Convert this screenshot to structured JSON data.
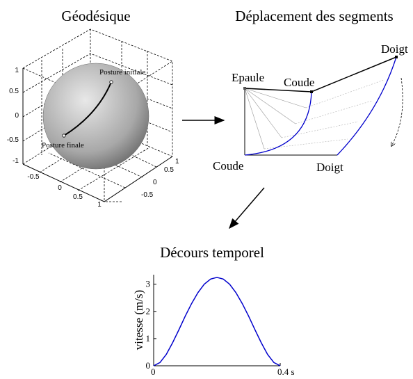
{
  "geodesic": {
    "title": "Géodésique",
    "start_label": "Posture initiale",
    "end_label": "Posture finale",
    "z_ticks": [
      "1",
      "0.5",
      "0",
      "-0.5",
      "-1"
    ],
    "x_ticks": [
      "-0.5",
      "0",
      "0.5",
      "1"
    ],
    "y_ticks": [
      "1",
      "0.5",
      "0",
      "-0.5"
    ]
  },
  "segments": {
    "title": "Déplacement des segments",
    "labels": [
      "Epaule",
      "Coude",
      "Doigt",
      "Coude",
      "Doigt"
    ]
  },
  "chart_data": {
    "type": "line",
    "title": "Décours temporel",
    "y_label": "vitesse (m/s)",
    "x": [
      0,
      0.02,
      0.04,
      0.06,
      0.08,
      0.1,
      0.12,
      0.14,
      0.16,
      0.18,
      0.2,
      0.22,
      0.24,
      0.26,
      0.28,
      0.3,
      0.32,
      0.34,
      0.36,
      0.38,
      0.4
    ],
    "series": [
      {
        "color": "#0000cc",
        "values": [
          0,
          0.12,
          0.42,
          0.85,
          1.33,
          1.83,
          2.29,
          2.69,
          3.0,
          3.19,
          3.25,
          3.19,
          3.0,
          2.69,
          2.29,
          1.83,
          1.33,
          0.85,
          0.42,
          0.12,
          0
        ]
      }
    ],
    "xlim": [
      0,
      0.4
    ],
    "ylim": [
      0,
      3.35
    ],
    "xticks": [
      0,
      {
        "value": 0.4,
        "label": "0.4 s"
      }
    ],
    "yticks": [
      0,
      1,
      2,
      3
    ]
  }
}
